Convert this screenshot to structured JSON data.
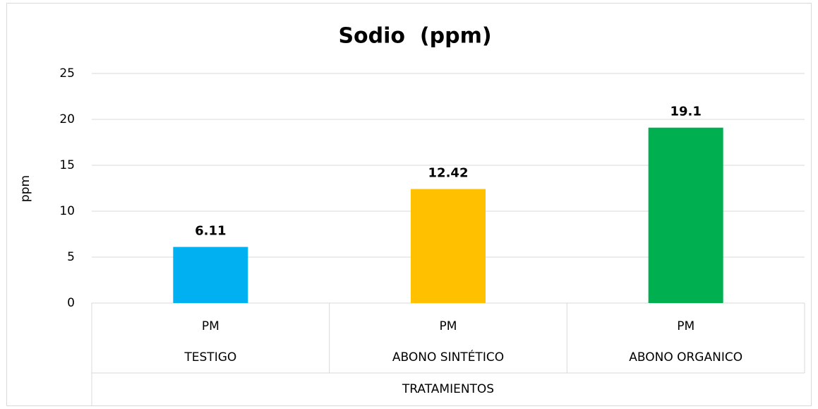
{
  "chart_data": {
    "type": "bar",
    "title": "Sodio  (ppm)",
    "categories": [
      "PM",
      "PM",
      "PM"
    ],
    "groups": [
      "TESTIGO",
      "ABONO SINTÉTICO",
      "ABONO ORGANICO"
    ],
    "x_label": "TRATAMIENTOS",
    "y_label": "ppm",
    "values": [
      6.11,
      12.42,
      19.1
    ],
    "colors": [
      "#00b0f0",
      "#ffc000",
      "#00b050"
    ],
    "ylim": [
      0,
      25
    ],
    "yticks": [
      0,
      5,
      10,
      15,
      20,
      25
    ],
    "grid": true
  }
}
